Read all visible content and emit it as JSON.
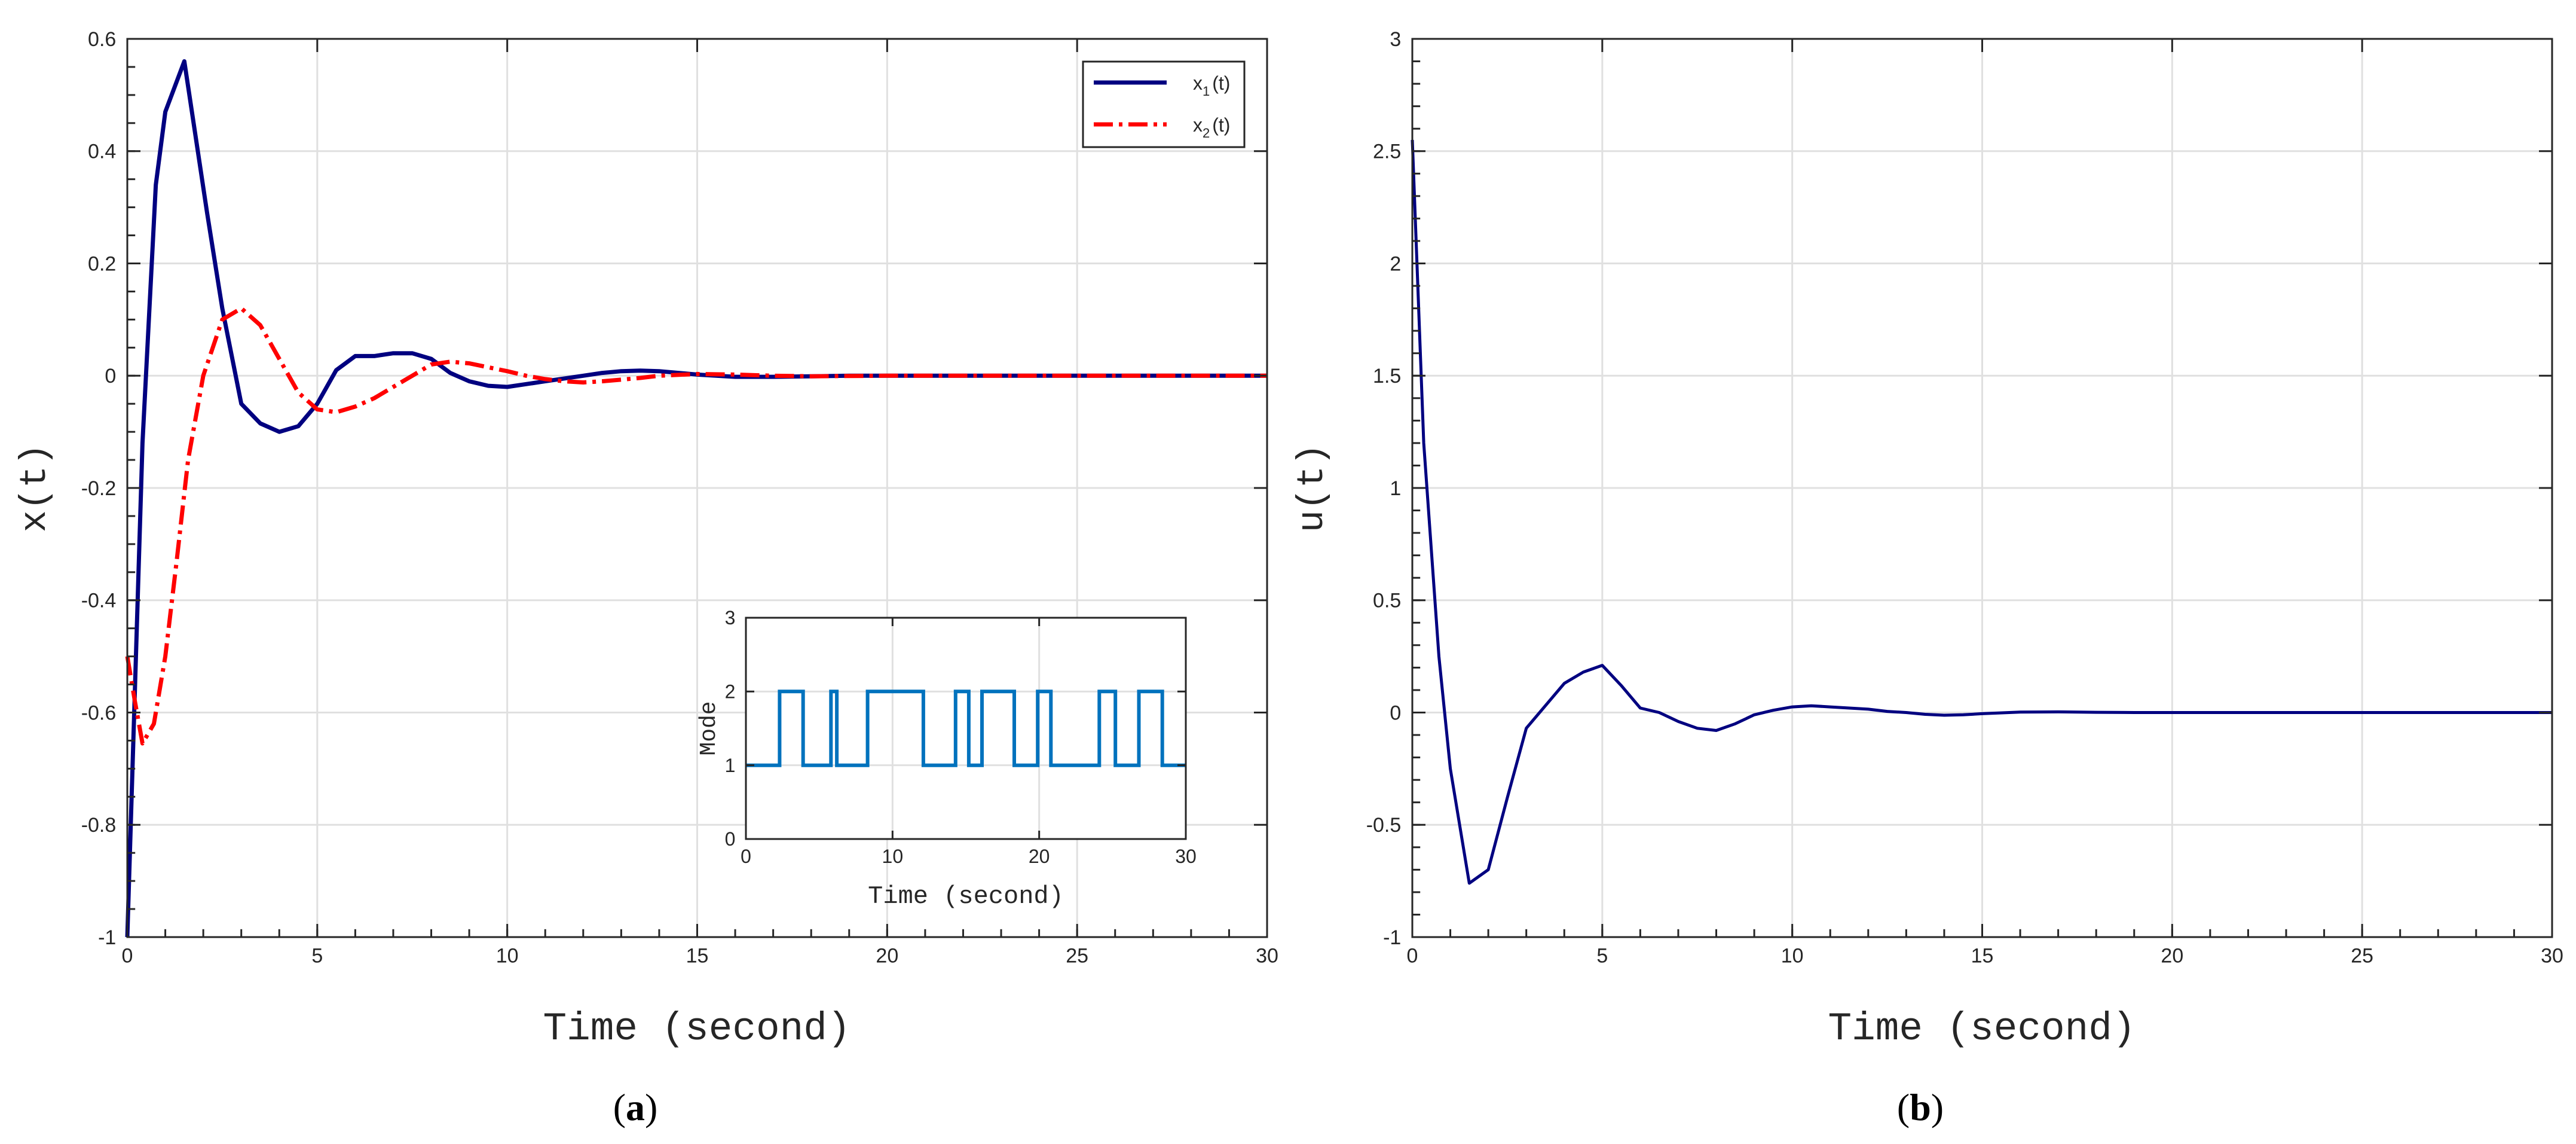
{
  "figure": {
    "captions": {
      "a_open": "(",
      "a_letter": "a",
      "a_close": ")",
      "b_open": "(",
      "b_letter": "b",
      "b_close": ")"
    },
    "colors": {
      "x1": "#000080",
      "x2": "#ff0000",
      "u": "#000080",
      "mode": "#0072bd",
      "grid": "#e0e0e0",
      "axis": "#262626"
    }
  },
  "chart_data": [
    {
      "id": "a",
      "type": "line",
      "title": "",
      "xlabel": "Time (second)",
      "ylabel": "x(t)",
      "xlim": [
        0,
        30
      ],
      "ylim": [
        -1,
        0.6
      ],
      "xticks": [
        0,
        5,
        10,
        15,
        20,
        25,
        30
      ],
      "xtick_labels": [
        "0",
        "5",
        "10",
        "15",
        "20",
        "25",
        "30"
      ],
      "yticks": [
        -1,
        -0.8,
        -0.6,
        -0.4,
        -0.2,
        0,
        0.2,
        0.4,
        0.6
      ],
      "ytick_labels": [
        "-1",
        "-0.8",
        "-0.6",
        "-0.4",
        "-0.2",
        "0",
        "0.2",
        "0.4",
        "0.6"
      ],
      "grid": true,
      "legend": "top-right",
      "series": [
        {
          "name": "x1(t)",
          "legend_main": "x",
          "legend_sub": "1",
          "legend_tail": "(t)",
          "style": "solid",
          "x": [
            0,
            0.4,
            0.75,
            1,
            1.5,
            1.9,
            2.1,
            2.5,
            3,
            3.5,
            4,
            4.5,
            5,
            5.5,
            6,
            6.5,
            7,
            7.5,
            8,
            8.5,
            9,
            9.5,
            10,
            10.5,
            11,
            11.5,
            12,
            12.5,
            13,
            13.5,
            14,
            15,
            16,
            17,
            18,
            19,
            20,
            22,
            25,
            28,
            30
          ],
          "y": [
            -1,
            -0.12,
            0.34,
            0.47,
            0.56,
            0.38,
            0.29,
            0.12,
            -0.05,
            -0.085,
            -0.1,
            -0.09,
            -0.05,
            0.01,
            0.035,
            0.035,
            0.04,
            0.04,
            0.03,
            0.005,
            -0.01,
            -0.018,
            -0.02,
            -0.015,
            -0.01,
            -0.005,
            0.0,
            0.005,
            0.008,
            0.009,
            0.008,
            0.002,
            -0.002,
            -0.002,
            -0.001,
            0.0,
            0.0,
            0.0,
            0.0,
            0.0,
            0.0
          ]
        },
        {
          "name": "x2(t)",
          "legend_main": "x",
          "legend_sub": "2",
          "legend_tail": "(t)",
          "style": "dashdot",
          "x": [
            0,
            0.2,
            0.4,
            0.7,
            1,
            1.3,
            1.6,
            2,
            2.5,
            3,
            3.5,
            4,
            4.5,
            5,
            5.5,
            6,
            6.5,
            7,
            7.5,
            8,
            8.5,
            9,
            9.5,
            10,
            10.5,
            11,
            11.5,
            12,
            12.5,
            13,
            13.5,
            14,
            15,
            16,
            17,
            18,
            20,
            22,
            25,
            28,
            30
          ],
          "y": [
            -0.5,
            -0.58,
            -0.655,
            -0.62,
            -0.5,
            -0.33,
            -0.15,
            0.0,
            0.1,
            0.12,
            0.09,
            0.03,
            -0.03,
            -0.06,
            -0.065,
            -0.055,
            -0.04,
            -0.02,
            0.0,
            0.02,
            0.025,
            0.022,
            0.015,
            0.008,
            0.0,
            -0.006,
            -0.01,
            -0.012,
            -0.01,
            -0.007,
            -0.004,
            0.0,
            0.003,
            0.002,
            0.0,
            -0.001,
            0.0,
            0.0,
            0.0,
            0.0,
            0.0
          ]
        }
      ],
      "inset": {
        "type": "line",
        "xlabel": "Time (second)",
        "ylabel": "Mode",
        "xlim": [
          0,
          30
        ],
        "ylim": [
          0,
          3
        ],
        "xticks": [
          0,
          10,
          20,
          30
        ],
        "xtick_labels": [
          "0",
          "10",
          "20",
          "30"
        ],
        "yticks": [
          0,
          1,
          2,
          3
        ],
        "ytick_labels": [
          "0",
          "1",
          "2",
          "3"
        ],
        "grid": true,
        "step": true,
        "x": [
          0,
          1,
          2.3,
          3.9,
          4.5,
          5.8,
          6.2,
          7.2,
          8.3,
          10.0,
          12.1,
          13.8,
          14.3,
          15.2,
          16.1,
          17.3,
          18.3,
          19.0,
          19.9,
          20.8,
          22.3,
          24.1,
          24.6,
          25.2,
          26.0,
          26.8,
          27.8,
          28.4,
          29.0,
          30.0
        ],
        "y": [
          1,
          1,
          2,
          1,
          1,
          2,
          1,
          1,
          2,
          2,
          1,
          1,
          2,
          1,
          2,
          2,
          1,
          1,
          2,
          1,
          1,
          2,
          2,
          1,
          1,
          2,
          2,
          1,
          1,
          1
        ]
      }
    },
    {
      "id": "b",
      "type": "line",
      "title": "",
      "xlabel": "Time (second)",
      "ylabel": "u(t)",
      "xlim": [
        0,
        30
      ],
      "ylim": [
        -1,
        3
      ],
      "xticks": [
        0,
        5,
        10,
        15,
        20,
        25,
        30
      ],
      "xtick_labels": [
        "0",
        "5",
        "10",
        "15",
        "20",
        "25",
        "30"
      ],
      "yticks": [
        -1,
        -0.5,
        0,
        0.5,
        1,
        1.5,
        2,
        2.5,
        3
      ],
      "ytick_labels": [
        "-1",
        "-0.5",
        "0",
        "0.5",
        "1",
        "1.5",
        "2",
        "2.5",
        "3"
      ],
      "grid": true,
      "series": [
        {
          "name": "",
          "style": "solid",
          "x": [
            0,
            0.3,
            0.7,
            1,
            1.5,
            2,
            2.5,
            3,
            3.5,
            4,
            4.5,
            5,
            5.5,
            6,
            6.5,
            7,
            7.5,
            8,
            8.5,
            9,
            9.5,
            10,
            10.5,
            11,
            11.5,
            12,
            12.5,
            13,
            13.5,
            14,
            14.5,
            15,
            16,
            17,
            18,
            19,
            20,
            22,
            25,
            28,
            30
          ],
          "y": [
            2.55,
            1.2,
            0.25,
            -0.25,
            -0.76,
            -0.7,
            -0.38,
            -0.07,
            0.03,
            0.13,
            0.18,
            0.21,
            0.12,
            0.02,
            0.0,
            -0.04,
            -0.07,
            -0.08,
            -0.05,
            -0.01,
            0.01,
            0.025,
            0.03,
            0.025,
            0.02,
            0.015,
            0.005,
            0.0,
            -0.008,
            -0.012,
            -0.01,
            -0.005,
            0.002,
            0.003,
            0.001,
            0.0,
            0.0,
            0.0,
            0.0,
            0.0,
            0.0
          ]
        }
      ]
    }
  ]
}
